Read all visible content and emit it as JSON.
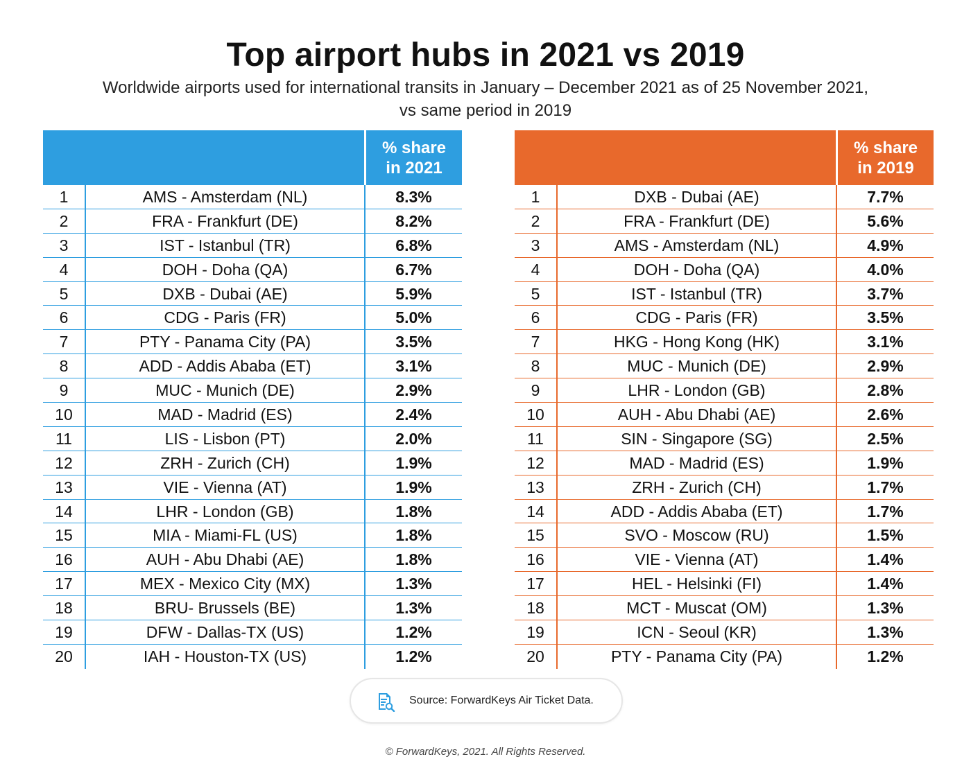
{
  "title": "Top airport hubs in 2021 vs 2019",
  "subtitle_line1": "Worldwide airports used for international transits in January – December 2021 as of 25 November 2021,",
  "subtitle_line2": "vs same period in 2019",
  "colors": {
    "blue": "#2e9ee0",
    "orange": "#e8692c"
  },
  "chart_data": [
    {
      "type": "table",
      "header_line1": "% share",
      "header_line2": "in 2021",
      "rows": [
        {
          "rank": "1",
          "airport": "AMS - Amsterdam (NL)",
          "share": "8.3%"
        },
        {
          "rank": "2",
          "airport": "FRA - Frankfurt (DE)",
          "share": "8.2%"
        },
        {
          "rank": "3",
          "airport": "IST - Istanbul (TR)",
          "share": "6.8%"
        },
        {
          "rank": "4",
          "airport": "DOH - Doha (QA)",
          "share": "6.7%"
        },
        {
          "rank": "5",
          "airport": "DXB - Dubai (AE)",
          "share": "5.9%"
        },
        {
          "rank": "6",
          "airport": "CDG - Paris (FR)",
          "share": "5.0%"
        },
        {
          "rank": "7",
          "airport": "PTY - Panama City (PA)",
          "share": "3.5%"
        },
        {
          "rank": "8",
          "airport": "ADD - Addis Ababa (ET)",
          "share": "3.1%"
        },
        {
          "rank": "9",
          "airport": "MUC - Munich (DE)",
          "share": "2.9%"
        },
        {
          "rank": "10",
          "airport": "MAD - Madrid (ES)",
          "share": "2.4%"
        },
        {
          "rank": "11",
          "airport": "LIS - Lisbon (PT)",
          "share": "2.0%"
        },
        {
          "rank": "12",
          "airport": "ZRH - Zurich (CH)",
          "share": "1.9%"
        },
        {
          "rank": "13",
          "airport": "VIE - Vienna (AT)",
          "share": "1.9%"
        },
        {
          "rank": "14",
          "airport": "LHR - London (GB)",
          "share": "1.8%"
        },
        {
          "rank": "15",
          "airport": "MIA - Miami-FL (US)",
          "share": "1.8%"
        },
        {
          "rank": "16",
          "airport": "AUH - Abu Dhabi (AE)",
          "share": "1.8%"
        },
        {
          "rank": "17",
          "airport": "MEX - Mexico City (MX)",
          "share": "1.3%"
        },
        {
          "rank": "18",
          "airport": "BRU- Brussels (BE)",
          "share": "1.3%"
        },
        {
          "rank": "19",
          "airport": "DFW - Dallas-TX (US)",
          "share": "1.2%"
        },
        {
          "rank": "20",
          "airport": "IAH - Houston-TX (US)",
          "share": "1.2%"
        }
      ]
    },
    {
      "type": "table",
      "header_line1": "% share",
      "header_line2": "in 2019",
      "rows": [
        {
          "rank": "1",
          "airport": "DXB - Dubai (AE)",
          "share": "7.7%"
        },
        {
          "rank": "2",
          "airport": "FRA - Frankfurt (DE)",
          "share": "5.6%"
        },
        {
          "rank": "3",
          "airport": "AMS - Amsterdam (NL)",
          "share": "4.9%"
        },
        {
          "rank": "4",
          "airport": "DOH - Doha (QA)",
          "share": "4.0%"
        },
        {
          "rank": "5",
          "airport": "IST - Istanbul (TR)",
          "share": "3.7%"
        },
        {
          "rank": "6",
          "airport": "CDG - Paris (FR)",
          "share": "3.5%"
        },
        {
          "rank": "7",
          "airport": "HKG - Hong Kong (HK)",
          "share": "3.1%"
        },
        {
          "rank": "8",
          "airport": "MUC - Munich (DE)",
          "share": "2.9%"
        },
        {
          "rank": "9",
          "airport": "LHR - London (GB)",
          "share": "2.8%"
        },
        {
          "rank": "10",
          "airport": "AUH - Abu Dhabi (AE)",
          "share": "2.6%"
        },
        {
          "rank": "11",
          "airport": "SIN - Singapore (SG)",
          "share": "2.5%"
        },
        {
          "rank": "12",
          "airport": "MAD - Madrid (ES)",
          "share": "1.9%"
        },
        {
          "rank": "13",
          "airport": "ZRH - Zurich (CH)",
          "share": "1.7%"
        },
        {
          "rank": "14",
          "airport": "ADD - Addis Ababa (ET)",
          "share": "1.7%"
        },
        {
          "rank": "15",
          "airport": "SVO - Moscow (RU)",
          "share": "1.5%"
        },
        {
          "rank": "16",
          "airport": "VIE - Vienna (AT)",
          "share": "1.4%"
        },
        {
          "rank": "17",
          "airport": "HEL - Helsinki (FI)",
          "share": "1.4%"
        },
        {
          "rank": "18",
          "airport": "MCT - Muscat (OM)",
          "share": "1.3%"
        },
        {
          "rank": "19",
          "airport": "ICN - Seoul (KR)",
          "share": "1.3%"
        },
        {
          "rank": "20",
          "airport": "PTY - Panama City (PA)",
          "share": "1.2%"
        }
      ]
    }
  ],
  "source": {
    "icon": "document-search-icon",
    "text": "Source: ForwardKeys Air Ticket Data."
  },
  "copyright": "© ForwardKeys, 2021. All Rights Reserved."
}
